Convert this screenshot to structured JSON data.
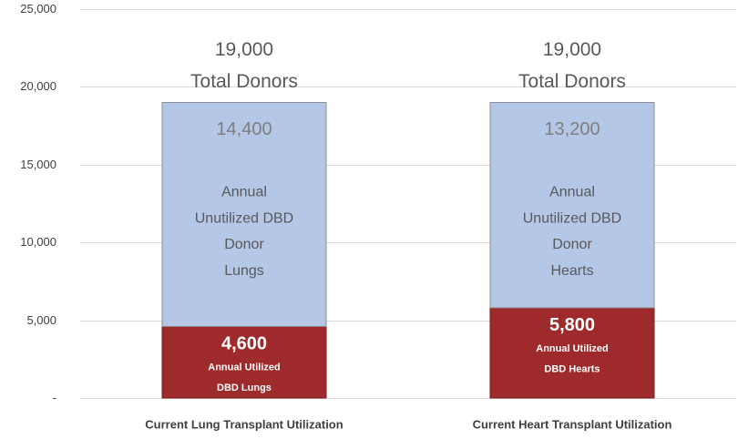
{
  "chart_data": {
    "type": "bar",
    "stacked": true,
    "categories": [
      "Current Lung Transplant Utilization",
      "Current Heart Transplant Utilization"
    ],
    "ylim": [
      0,
      25000
    ],
    "y_ticks": [
      0,
      5000,
      10000,
      15000,
      20000,
      25000
    ],
    "y_tick_labels": [
      "-",
      "5,000",
      "10,000",
      "15,000",
      "20,000",
      "25,000"
    ],
    "grid": true,
    "legend": "none",
    "series": [
      {
        "color": "#9e2a2b",
        "values": [
          4600,
          5800
        ],
        "data_labels": [
          "4,600",
          "5,800"
        ],
        "segment_text": [
          [
            "Annual Utilized",
            "DBD Lungs"
          ],
          [
            "Annual Utilized",
            "DBD Hearts"
          ]
        ]
      },
      {
        "color": "#b4c7e7",
        "values": [
          14400,
          13200
        ],
        "data_labels": [
          "14,400",
          "13,200"
        ],
        "segment_text": [
          [
            "Annual",
            "Unutilized DBD",
            "Donor",
            "Lungs"
          ],
          [
            "Annual",
            "Unutilized DBD",
            "Donor",
            "Hearts"
          ]
        ]
      }
    ],
    "totals": [
      19000,
      19000
    ],
    "total_labels": [
      "19,000",
      "19,000"
    ],
    "total_caption": "Total Donors"
  }
}
